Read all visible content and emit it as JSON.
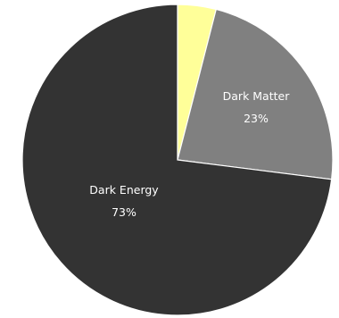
{
  "chart_data": {
    "type": "pie",
    "title": "",
    "start_angle_deg": 0,
    "direction": "clockwise",
    "slices": [
      {
        "label": "",
        "value_label": "",
        "value": 4,
        "color": "#ffff99"
      },
      {
        "label": "Dark Matter",
        "value_label": "23%",
        "value": 23,
        "color": "#808080"
      },
      {
        "label": "Dark Energy",
        "value_label": "73%",
        "value": 73,
        "color": "#333333"
      }
    ],
    "legend": "none"
  }
}
